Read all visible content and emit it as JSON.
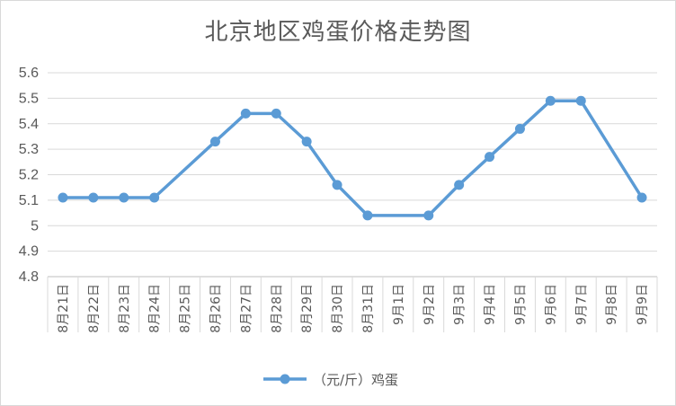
{
  "chart_data": {
    "type": "line",
    "title": "北京地区鸡蛋价格走势图",
    "xlabel": "",
    "ylabel": "",
    "categories": [
      "8月21日",
      "8月22日",
      "8月23日",
      "8月24日",
      "8月25日",
      "8月26日",
      "8月27日",
      "8月28日",
      "8月29日",
      "8月30日",
      "8月31日",
      "9月1日",
      "9月2日",
      "9月3日",
      "9月4日",
      "9月5日",
      "9月6日",
      "9月7日",
      "9月8日",
      "9月9日"
    ],
    "series": [
      {
        "name": "（元/斤）鸡蛋",
        "color": "#5b9bd5",
        "values": [
          5.11,
          5.11,
          5.11,
          5.11,
          null,
          5.33,
          5.44,
          5.44,
          5.33,
          5.16,
          5.04,
          null,
          5.04,
          5.16,
          5.27,
          5.38,
          5.49,
          5.49,
          null,
          5.11
        ]
      }
    ],
    "ylim": [
      4.8,
      5.6
    ],
    "yticks": [
      "4.8",
      "4.9",
      "5",
      "5.1",
      "5.2",
      "5.3",
      "5.4",
      "5.5",
      "5.6"
    ],
    "ytick_values": [
      4.8,
      4.9,
      5.0,
      5.1,
      5.2,
      5.3,
      5.4,
      5.5,
      5.6
    ],
    "grid": true,
    "legend_position": "bottom"
  }
}
